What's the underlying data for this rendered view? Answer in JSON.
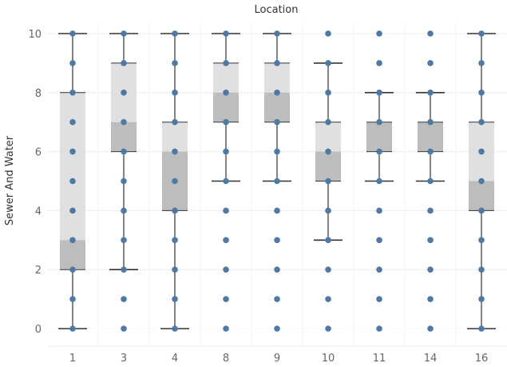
{
  "chart_data": {
    "type": "box",
    "title": "Location",
    "xlabel": "",
    "ylabel": "Sewer And Water",
    "ylim": [
      0,
      10
    ],
    "yticks": [
      0,
      2,
      4,
      6,
      8,
      10
    ],
    "grid": true,
    "categories": [
      "1",
      "3",
      "4",
      "8",
      "9",
      "10",
      "11",
      "14",
      "16"
    ],
    "boxes": [
      {
        "category": "1",
        "lower_whisker": 0,
        "q1": 2,
        "median": 3,
        "q3": 8,
        "upper_whisker": 10
      },
      {
        "category": "3",
        "lower_whisker": 2,
        "q1": 6,
        "median": 7,
        "q3": 9,
        "upper_whisker": 10
      },
      {
        "category": "4",
        "lower_whisker": 0,
        "q1": 4,
        "median": 6,
        "q3": 7,
        "upper_whisker": 10
      },
      {
        "category": "8",
        "lower_whisker": 5,
        "q1": 7,
        "median": 8,
        "q3": 9,
        "upper_whisker": 10
      },
      {
        "category": "9",
        "lower_whisker": 5,
        "q1": 7,
        "median": 8,
        "q3": 9,
        "upper_whisker": 10
      },
      {
        "category": "10",
        "lower_whisker": 3,
        "q1": 5,
        "median": 6,
        "q3": 7,
        "upper_whisker": 9
      },
      {
        "category": "11",
        "lower_whisker": 5,
        "q1": 6,
        "median": 7,
        "q3": 7,
        "upper_whisker": 8
      },
      {
        "category": "14",
        "lower_whisker": 5,
        "q1": 6,
        "median": 7,
        "q3": 7,
        "upper_whisker": 8
      },
      {
        "category": "16",
        "lower_whisker": 0,
        "q1": 4,
        "median": 5,
        "q3": 7,
        "upper_whisker": 10
      }
    ],
    "points": {
      "1": [
        0,
        1,
        2,
        3,
        4,
        5,
        6,
        7,
        8,
        9,
        10
      ],
      "3": [
        0,
        1,
        2,
        3,
        4,
        5,
        6,
        7,
        8,
        9,
        10
      ],
      "4": [
        0,
        1,
        2,
        3,
        4,
        5,
        6,
        7,
        8,
        9,
        10
      ],
      "8": [
        0,
        1,
        2,
        3,
        4,
        5,
        6,
        7,
        8,
        9,
        10
      ],
      "9": [
        0,
        1,
        2,
        3,
        4,
        5,
        6,
        7,
        8,
        9,
        10
      ],
      "10": [
        0,
        1,
        2,
        3,
        4,
        5,
        6,
        7,
        8,
        9,
        10
      ],
      "11": [
        0,
        1,
        2,
        3,
        4,
        5,
        6,
        7,
        8,
        9,
        10
      ],
      "14": [
        0,
        1,
        2,
        3,
        4,
        5,
        6,
        7,
        8,
        9,
        10
      ],
      "16": [
        0,
        1,
        2,
        3,
        4,
        5,
        6,
        7,
        8,
        9,
        10
      ]
    },
    "colors": {
      "point": "#4e79a7",
      "box_upper": "#e0e0e0",
      "box_lower": "#bdbdbd",
      "whisker": "#333333",
      "gridline": "#eeeeee"
    }
  }
}
